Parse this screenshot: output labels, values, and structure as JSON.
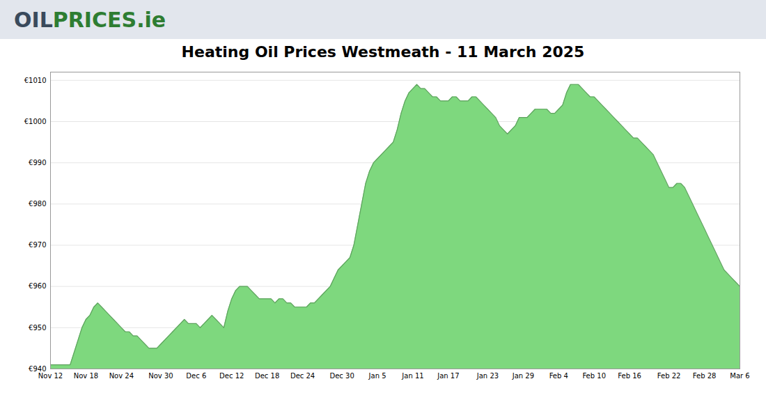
{
  "chart_data": {
    "type": "area",
    "title": "Heating Oil Prices Westmeath - 11 March 2025",
    "annotations": [
      {
        "text": "OIL",
        "color": "#3a4a5c"
      },
      {
        "text": "PRICES.ie",
        "color": "#2e7d32"
      }
    ],
    "color": "#7ed87e",
    "grid": true,
    "ylim": [
      940,
      1012
    ],
    "yticks": [
      {
        "value": 940,
        "label": "€940"
      },
      {
        "value": 950,
        "label": "€950"
      },
      {
        "value": 960,
        "label": "€960"
      },
      {
        "value": 970,
        "label": "€970"
      },
      {
        "value": 980,
        "label": "€980"
      },
      {
        "value": 990,
        "label": "€990"
      },
      {
        "value": 1000,
        "label": "€1000"
      },
      {
        "value": 1010,
        "label": "€1010"
      }
    ],
    "categories": [
      "Nov 12",
      null,
      null,
      null,
      null,
      null,
      null,
      null,
      null,
      "Nov 18",
      null,
      null,
      null,
      null,
      null,
      null,
      null,
      null,
      "Nov 24",
      null,
      null,
      null,
      null,
      null,
      null,
      null,
      null,
      null,
      "Nov 30",
      null,
      null,
      null,
      null,
      null,
      null,
      null,
      null,
      "Dec 6",
      null,
      null,
      null,
      null,
      null,
      null,
      null,
      null,
      "Dec 12",
      null,
      null,
      null,
      null,
      null,
      null,
      null,
      null,
      "Dec 18",
      null,
      null,
      null,
      null,
      null,
      null,
      null,
      null,
      "Dec 24",
      null,
      null,
      null,
      null,
      null,
      null,
      null,
      null,
      null,
      "Dec 30",
      null,
      null,
      null,
      null,
      null,
      null,
      null,
      null,
      "Jan 5",
      null,
      null,
      null,
      null,
      null,
      null,
      null,
      null,
      "Jan 11",
      null,
      null,
      null,
      null,
      null,
      null,
      null,
      null,
      "Jan 17",
      null,
      null,
      null,
      null,
      null,
      null,
      null,
      null,
      null,
      "Jan 23",
      null,
      null,
      null,
      null,
      null,
      null,
      null,
      null,
      "Jan 29",
      null,
      null,
      null,
      null,
      null,
      null,
      null,
      null,
      "Feb 4",
      null,
      null,
      null,
      null,
      null,
      null,
      null,
      null,
      "Feb 10",
      null,
      null,
      null,
      null,
      null,
      null,
      null,
      null,
      "Feb 16",
      null,
      null,
      null,
      null,
      null,
      null,
      null,
      null,
      null,
      "Feb 22",
      null,
      null,
      null,
      null,
      null,
      null,
      null,
      null,
      "Feb 28",
      null,
      null,
      null,
      null,
      null,
      null,
      null,
      null,
      "Mar 6"
    ],
    "values": [
      941,
      941,
      941,
      941,
      941,
      941,
      944,
      947,
      950,
      952,
      953,
      955,
      956,
      955,
      954,
      953,
      952,
      951,
      950,
      949,
      949,
      948,
      948,
      947,
      946,
      945,
      945,
      945,
      946,
      947,
      948,
      949,
      950,
      951,
      952,
      951,
      951,
      951,
      950,
      951,
      952,
      953,
      952,
      951,
      950,
      954,
      957,
      959,
      960,
      960,
      960,
      959,
      958,
      957,
      957,
      957,
      957,
      956,
      957,
      957,
      956,
      956,
      955,
      955,
      955,
      955,
      956,
      956,
      957,
      958,
      959,
      960,
      962,
      964,
      965,
      966,
      967,
      970,
      975,
      980,
      985,
      988,
      990,
      991,
      992,
      993,
      994,
      995,
      998,
      1002,
      1005,
      1007,
      1008,
      1009,
      1008,
      1008,
      1007,
      1006,
      1006,
      1005,
      1005,
      1005,
      1006,
      1006,
      1005,
      1005,
      1005,
      1006,
      1006,
      1005,
      1004,
      1003,
      1002,
      1001,
      999,
      998,
      997,
      998,
      999,
      1001,
      1001,
      1001,
      1002,
      1003,
      1003,
      1003,
      1003,
      1002,
      1002,
      1003,
      1004,
      1007,
      1009,
      1009,
      1009,
      1008,
      1007,
      1006,
      1006,
      1005,
      1004,
      1003,
      1002,
      1001,
      1000,
      999,
      998,
      997,
      996,
      996,
      995,
      994,
      993,
      992,
      990,
      988,
      986,
      984,
      984,
      985,
      985,
      984,
      982,
      980,
      978,
      976,
      974,
      972,
      970,
      968,
      966,
      964,
      963,
      962,
      961,
      960
    ]
  }
}
